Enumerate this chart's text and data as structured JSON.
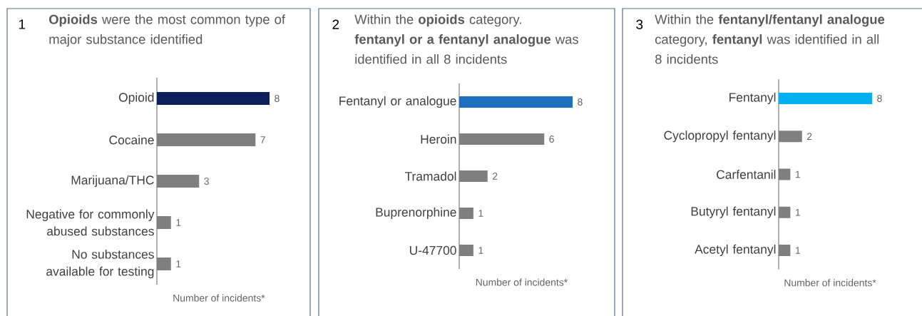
{
  "chart_data": [
    {
      "type": "bar",
      "orientation": "horizontal",
      "data_labels": true,
      "annotations": [
        "1"
      ],
      "title": "**Opioids** were the most common type of major substance identified",
      "xlabel": "Number of incidents*",
      "categories": [
        "Opioid",
        "Cocaine",
        "Marijuana/THC",
        "Negative for commonly abused substances",
        "No substances available for testing"
      ],
      "values": [
        8,
        7,
        3,
        1,
        1
      ],
      "colors": [
        "#0d1f5c",
        "#7f7f7f",
        "#7f7f7f",
        "#7f7f7f",
        "#7f7f7f"
      ]
    },
    {
      "type": "bar",
      "orientation": "horizontal",
      "data_labels": true,
      "annotations": [
        "2"
      ],
      "title": "Within the **opioids** category. **fentanyl or a fentanyl analogue** was identified in all 8 incidents",
      "xlabel": "Number of incidents*",
      "categories": [
        "Fentanyl or analogue",
        "Heroin",
        "Tramadol",
        "Buprenorphine",
        "U-47700"
      ],
      "values": [
        8,
        6,
        2,
        1,
        1
      ],
      "colors": [
        "#1f6fbf",
        "#7f7f7f",
        "#7f7f7f",
        "#7f7f7f",
        "#7f7f7f"
      ]
    },
    {
      "type": "bar",
      "orientation": "horizontal",
      "data_labels": true,
      "annotations": [
        "3"
      ],
      "title": "Within the **fentanyl/fentanyl analogue** category, **fentanyl** was identified in all 8 incidents",
      "xlabel": "Number of incidents*",
      "categories": [
        "Fentanyl",
        "Cyclopropyl fentanyl",
        "Carfentanil",
        "Butyryl fentanyl",
        "Acetyl fentanyl"
      ],
      "values": [
        8,
        2,
        1,
        1,
        1
      ],
      "colors": [
        "#00b0f0",
        "#7f7f7f",
        "#7f7f7f",
        "#7f7f7f",
        "#7f7f7f"
      ]
    }
  ]
}
